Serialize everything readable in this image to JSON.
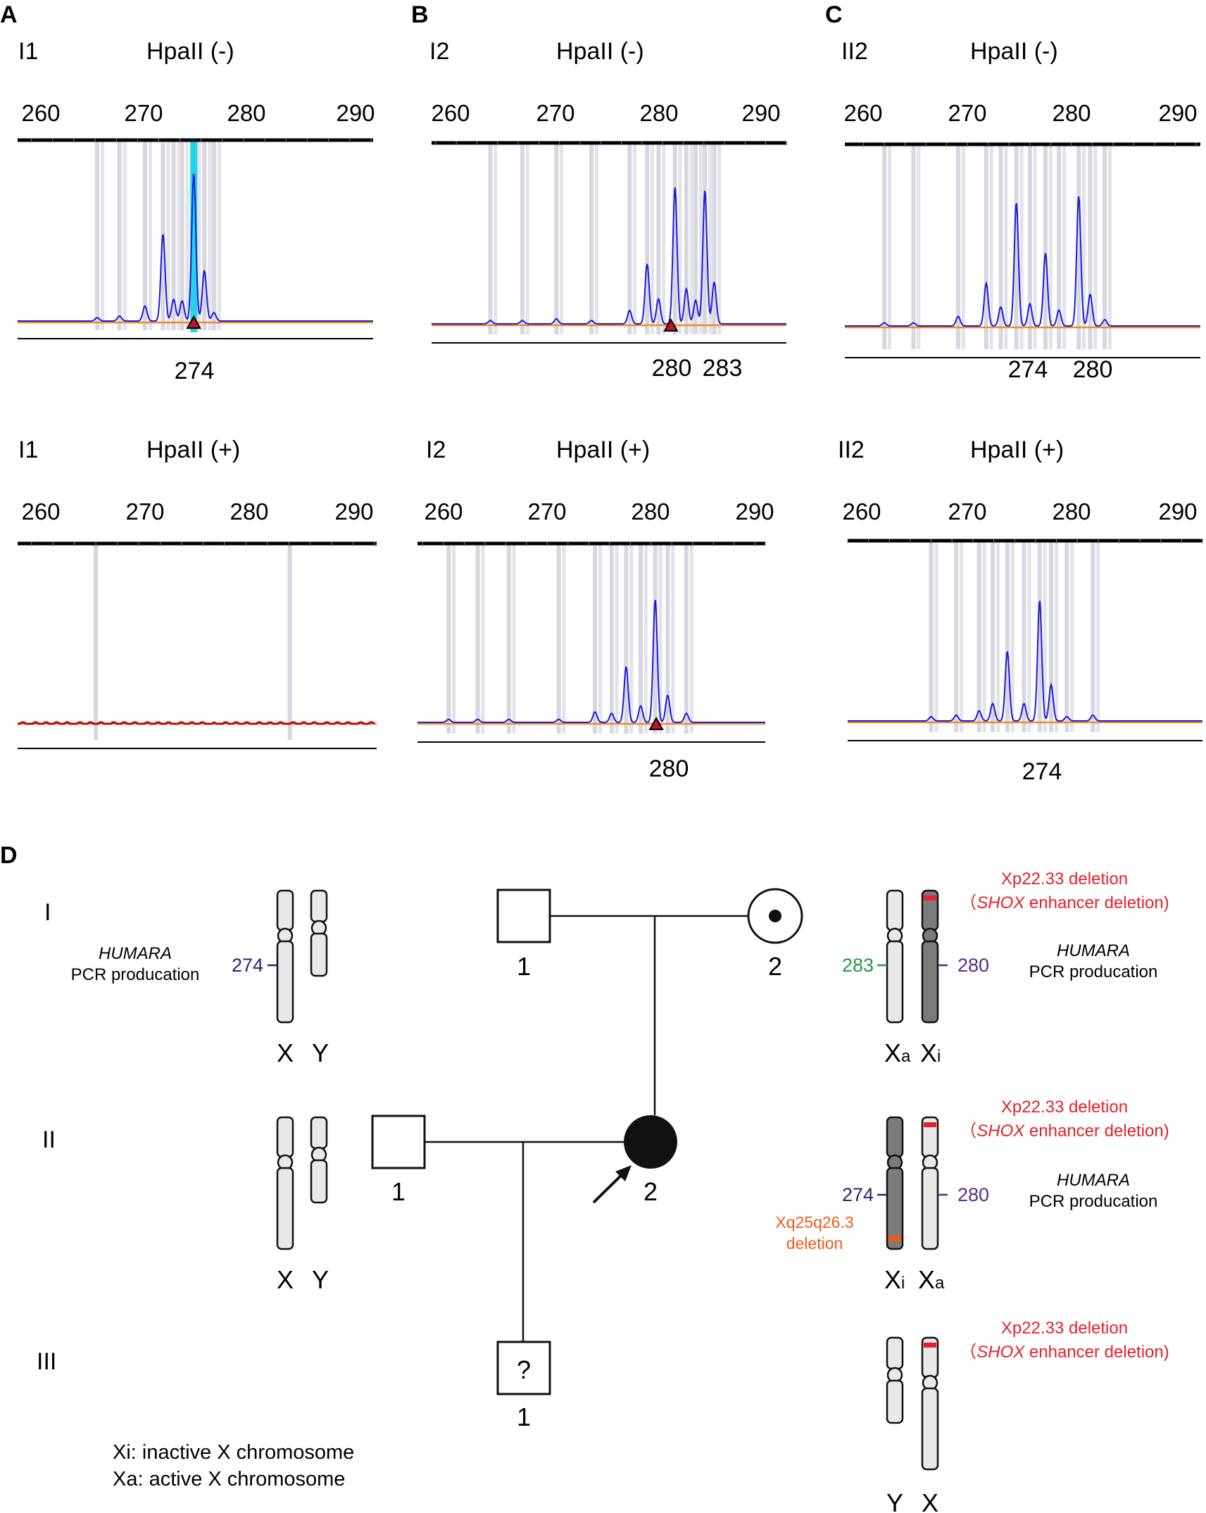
{
  "panels": [
    {
      "letter": "A",
      "sample": "I1",
      "rows": [
        {
          "enzyme": "HpaII (-)",
          "ticks": [
            "260",
            "270",
            "280",
            "290"
          ],
          "peaks": [
            {
              "size": 266.2,
              "rel": 0.02
            },
            {
              "size": 268.3,
              "rel": 0.03
            },
            {
              "size": 270.7,
              "rel": 0.09
            },
            {
              "size": 272.4,
              "rel": 0.52
            },
            {
              "size": 273.4,
              "rel": 0.13
            },
            {
              "size": 274.2,
              "rel": 0.12
            },
            {
              "size": 275.3,
              "rel": 0.88
            },
            {
              "size": 276.3,
              "rel": 0.3
            },
            {
              "size": 277.2,
              "rel": 0.05
            }
          ],
          "peak_labels": [
            "274"
          ],
          "highlight": 275.3,
          "markers": [
            275.3
          ]
        },
        {
          "enzyme": "HpaII (+)",
          "ticks": [
            "260",
            "270",
            "280",
            "290"
          ],
          "peaks": [],
          "peak_labels": [],
          "highlight": null,
          "markers": []
        }
      ]
    },
    {
      "letter": "B",
      "sample": "I2",
      "rows": [
        {
          "enzyme": "HpaII (-)",
          "ticks": [
            "260",
            "270",
            "280",
            "290"
          ],
          "peaks": [
            {
              "size": 263.3,
              "rel": 0.02
            },
            {
              "size": 266.4,
              "rel": 0.02
            },
            {
              "size": 269.7,
              "rel": 0.03
            },
            {
              "size": 273.1,
              "rel": 0.02
            },
            {
              "size": 276.8,
              "rel": 0.08
            },
            {
              "size": 278.5,
              "rel": 0.36
            },
            {
              "size": 279.6,
              "rel": 0.15
            },
            {
              "size": 281.2,
              "rel": 0.82
            },
            {
              "size": 282.3,
              "rel": 0.21
            },
            {
              "size": 283.2,
              "rel": 0.14
            },
            {
              "size": 284.1,
              "rel": 0.8
            },
            {
              "size": 285.0,
              "rel": 0.25
            }
          ],
          "peak_labels": [
            "280",
            "283"
          ],
          "highlight": null,
          "markers": [
            280.8
          ]
        },
        {
          "enzyme": "HpaII (+)",
          "ticks": [
            "260",
            "270",
            "280",
            "290"
          ],
          "peaks": [
            {
              "size": 260.5,
              "rel": 0.02
            },
            {
              "size": 263.3,
              "rel": 0.02
            },
            {
              "size": 266.3,
              "rel": 0.02
            },
            {
              "size": 271.1,
              "rel": 0.02
            },
            {
              "size": 274.6,
              "rel": 0.07
            },
            {
              "size": 276.2,
              "rel": 0.06
            },
            {
              "size": 277.6,
              "rel": 0.37
            },
            {
              "size": 279.0,
              "rel": 0.11
            },
            {
              "size": 280.4,
              "rel": 0.82
            },
            {
              "size": 281.6,
              "rel": 0.18
            },
            {
              "size": 283.4,
              "rel": 0.06
            }
          ],
          "peak_labels": [
            "280"
          ],
          "highlight": null,
          "markers": [
            280.5
          ]
        }
      ]
    },
    {
      "letter": "C",
      "sample": "II2",
      "rows": [
        {
          "enzyme": "HpaII (-)",
          "ticks": [
            "260",
            "270",
            "280",
            "290"
          ],
          "peaks": [
            {
              "size": 262.0,
              "rel": 0.02
            },
            {
              "size": 264.8,
              "rel": 0.02
            },
            {
              "size": 269.1,
              "rel": 0.06
            },
            {
              "size": 271.8,
              "rel": 0.27
            },
            {
              "size": 273.2,
              "rel": 0.12
            },
            {
              "size": 274.7,
              "rel": 0.78
            },
            {
              "size": 276.0,
              "rel": 0.14
            },
            {
              "size": 277.5,
              "rel": 0.46
            },
            {
              "size": 278.8,
              "rel": 0.1
            },
            {
              "size": 280.7,
              "rel": 0.82
            },
            {
              "size": 281.8,
              "rel": 0.2
            },
            {
              "size": 283.2,
              "rel": 0.04
            }
          ],
          "peak_labels": [
            "274",
            "280"
          ],
          "highlight": null,
          "markers": []
        },
        {
          "enzyme": "HpaII (+)",
          "ticks": [
            "260",
            "270",
            "280",
            "290"
          ],
          "peaks": [
            {
              "size": 266.0,
              "rel": 0.03
            },
            {
              "size": 268.4,
              "rel": 0.04
            },
            {
              "size": 270.6,
              "rel": 0.07
            },
            {
              "size": 271.9,
              "rel": 0.12
            },
            {
              "size": 273.3,
              "rel": 0.48
            },
            {
              "size": 274.9,
              "rel": 0.12
            },
            {
              "size": 276.4,
              "rel": 0.83
            },
            {
              "size": 277.5,
              "rel": 0.25
            },
            {
              "size": 279.0,
              "rel": 0.03
            },
            {
              "size": 281.5,
              "rel": 0.04
            }
          ],
          "peak_labels": [
            "274"
          ],
          "highlight": null,
          "markers": []
        }
      ]
    }
  ],
  "pedigree": {
    "letter": "D",
    "generations": [
      "I",
      "II",
      "III"
    ],
    "numbers": {
      "g1_m": "1",
      "g1_f": "2",
      "g2_m": "1",
      "g2_f": "2",
      "g3": "1"
    },
    "unknown_symbol": "?",
    "chr_x": "X",
    "chr_y": "Y",
    "xa": {
      "base": "X",
      "sub": "a"
    },
    "xi": {
      "base": "X",
      "sub": "i"
    },
    "humara": "HUMARA",
    "pcr": "PCR producation",
    "deletion_main": "Xp22.33 deletion",
    "deletion_paren_open": "（",
    "deletion_gene": "SHOX",
    "deletion_rest": " enhancer deletion)",
    "xq_deletion_1": "Xq25q26.3",
    "xq_deletion_2": "deletion",
    "alleles": {
      "i1": "274",
      "i2_xa": "283",
      "i2_xi": "280",
      "ii2_xi": "274",
      "ii2_xa": "280"
    },
    "legend_1": "Xi: inactive X chromosome",
    "legend_2": "Xa: active X chromosome",
    "colors": {
      "navy": "#22247a",
      "green": "#1f9a47",
      "purple": "#5b2a8c",
      "red": "#e8202a",
      "orange": "#ef5a1b"
    }
  }
}
